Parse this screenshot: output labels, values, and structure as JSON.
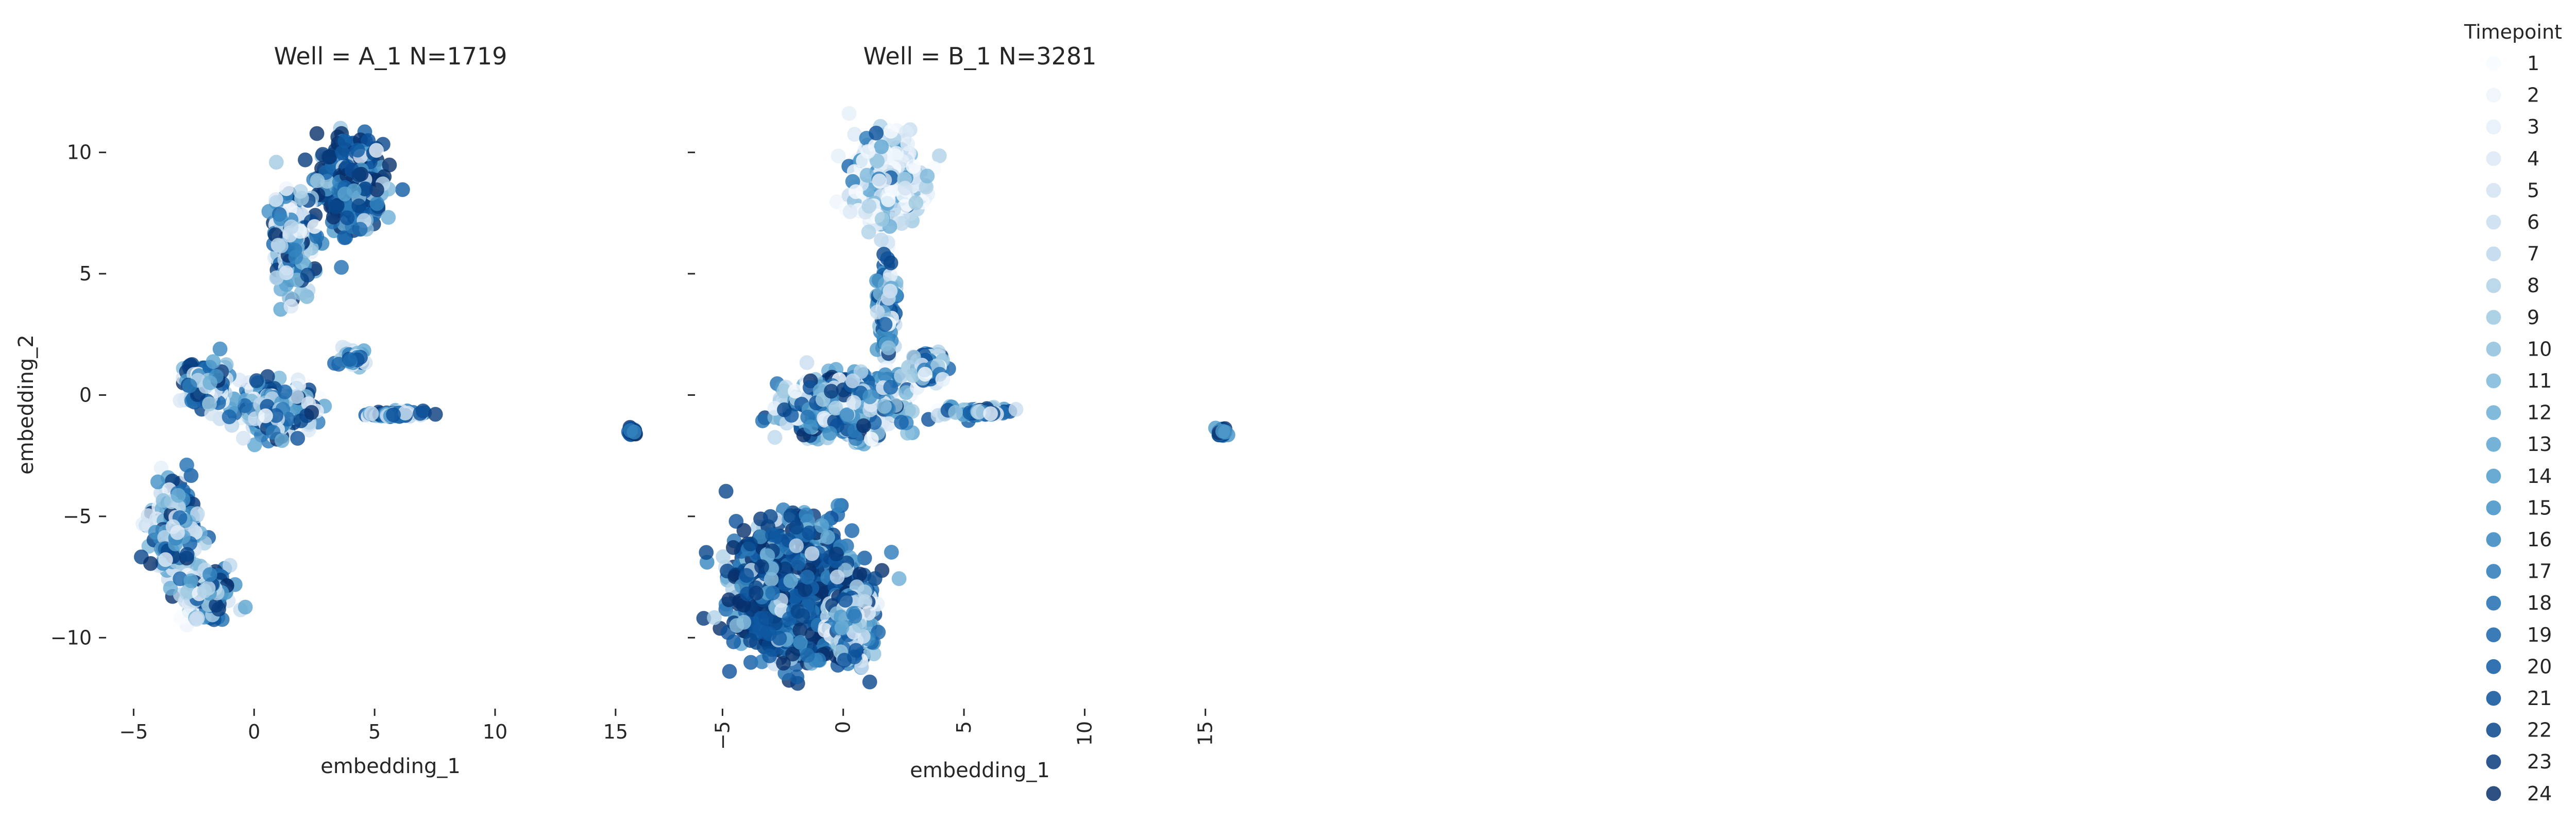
{
  "chart_data": [
    {
      "type": "scatter",
      "title": "Well = A_1 N=1719",
      "xlabel": "embedding_1",
      "ylabel": "embedding_2",
      "xlim": [
        -5.2,
        16.5
      ],
      "ylim": [
        -12.5,
        12.5
      ],
      "xticks": [
        -5,
        0,
        5,
        10,
        15
      ],
      "yticks": [
        10,
        5,
        0,
        -5,
        -10
      ],
      "xtick_labels": [
        "−5",
        "0",
        "5",
        "10",
        "15"
      ],
      "ytick_labels": [
        "10",
        "5",
        "0",
        "−5",
        "−10"
      ],
      "grid": false,
      "color_encoding": "Timepoint (sequential blues)",
      "clusters": [
        {
          "timepoints": "1-24 (mostly late)",
          "center": [
            4.0,
            8.8
          ],
          "spread": [
            1.2,
            1.6
          ]
        },
        {
          "timepoints": "1-24",
          "center": [
            1.6,
            6.5
          ],
          "spread": [
            0.8,
            1.6
          ]
        },
        {
          "timepoints": "mixed",
          "center": [
            1.0,
            -0.6
          ],
          "spread": [
            1.4,
            0.9
          ]
        },
        {
          "timepoints": "mixed",
          "center": [
            -2.0,
            0.4
          ],
          "spread": [
            0.8,
            0.8
          ]
        },
        {
          "timepoints": "mixed",
          "center": [
            4.0,
            1.5
          ],
          "spread": [
            0.4,
            0.3
          ]
        },
        {
          "timepoints": "mixed",
          "center": [
            5.8,
            -0.8
          ],
          "spread": [
            1.0,
            0.15
          ]
        },
        {
          "timepoints": "late",
          "center": [
            15.7,
            -1.5
          ],
          "spread": [
            0.15,
            0.12
          ]
        },
        {
          "timepoints": "mixed",
          "center": [
            -3.3,
            -5.5
          ],
          "spread": [
            0.9,
            1.6
          ]
        },
        {
          "timepoints": "mixed",
          "center": [
            -2.0,
            -8.3
          ],
          "spread": [
            0.9,
            0.8
          ]
        }
      ]
    },
    {
      "type": "scatter",
      "title": "Well = B_1 N=3281",
      "xlabel": "embedding_1",
      "ylabel": "",
      "xlim": [
        -5.2,
        16.5
      ],
      "ylim": [
        -12.5,
        12.5
      ],
      "xticks": [
        -5,
        0,
        5,
        10,
        15
      ],
      "yticks": [
        10,
        5,
        0,
        -5,
        -10
      ],
      "xtick_labels": [
        "−5",
        "0",
        "5",
        "10",
        "15"
      ],
      "ytick_labels": [],
      "grid": false,
      "color_encoding": "Timepoint (sequential blues)",
      "clusters": [
        {
          "timepoints": "mostly early",
          "center": [
            1.8,
            8.8
          ],
          "spread": [
            1.2,
            1.6
          ]
        },
        {
          "timepoints": "mixed",
          "center": [
            1.8,
            3.5
          ],
          "spread": [
            0.3,
            1.5
          ]
        },
        {
          "timepoints": "1-24",
          "center": [
            0.0,
            -0.5
          ],
          "spread": [
            2.2,
            1.1
          ]
        },
        {
          "timepoints": "mixed",
          "center": [
            3.5,
            1.2
          ],
          "spread": [
            0.6,
            0.5
          ]
        },
        {
          "timepoints": "mixed",
          "center": [
            5.5,
            -0.7
          ],
          "spread": [
            1.2,
            0.15
          ]
        },
        {
          "timepoints": "late",
          "center": [
            15.7,
            -1.5
          ],
          "spread": [
            0.15,
            0.12
          ]
        },
        {
          "timepoints": "1-24 (mostly late)",
          "center": [
            -2.0,
            -8.0
          ],
          "spread": [
            2.2,
            2.3
          ]
        },
        {
          "timepoints": "mixed",
          "center": [
            0.3,
            -9.5
          ],
          "spread": [
            0.8,
            1.2
          ]
        }
      ]
    }
  ],
  "legend": {
    "title": "Timepoint",
    "placement": "right",
    "entries": [
      "1",
      "2",
      "3",
      "4",
      "5",
      "6",
      "7",
      "8",
      "9",
      "10",
      "11",
      "12",
      "13",
      "14",
      "15",
      "16",
      "17",
      "18",
      "19",
      "20",
      "21",
      "22",
      "23",
      "24"
    ],
    "colors": [
      "#f7fbff",
      "#eef5fc",
      "#e5eff9",
      "#dce9f6",
      "#d3e4f3",
      "#c9ddf0",
      "#bed8ec",
      "#b0d2e7",
      "#a0cae1",
      "#8fc1dd",
      "#7db8da",
      "#6caed6",
      "#5da5d1",
      "#4f9bcb",
      "#4191c6",
      "#3586c0",
      "#2a7ab9",
      "#206fb2",
      "#1764ab",
      "#0f5aa3",
      "#0b509a",
      "#08468b",
      "#083b7c",
      "#08306b"
    ]
  }
}
